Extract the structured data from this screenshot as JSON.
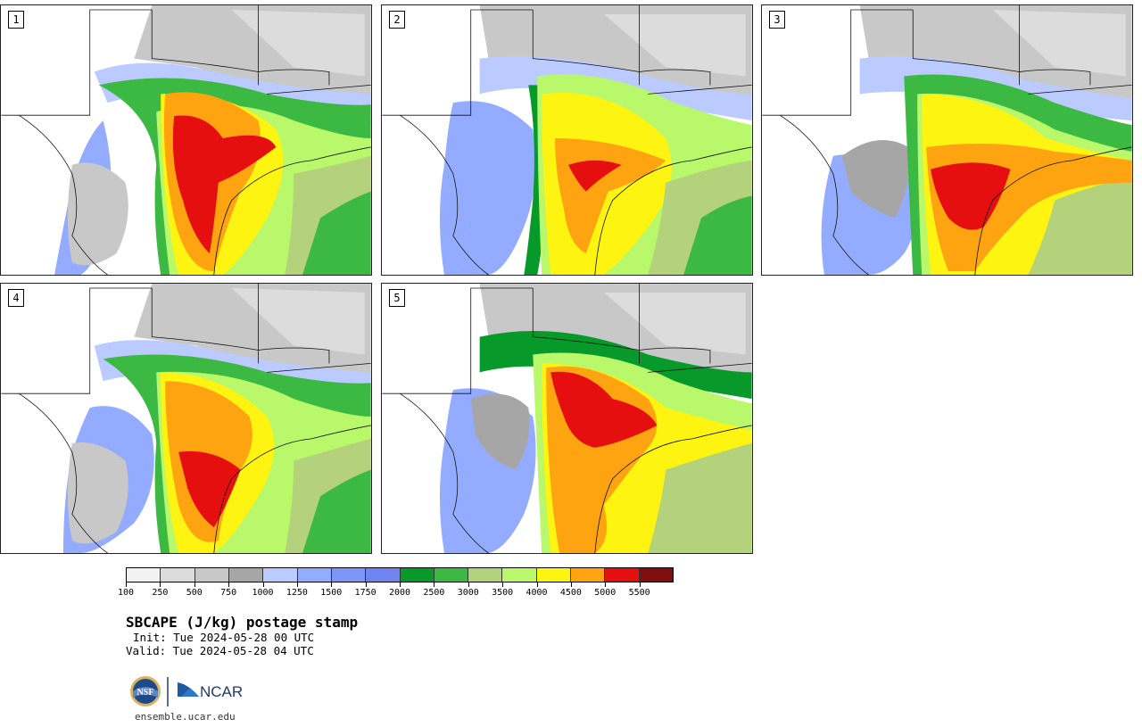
{
  "panels": [
    {
      "label": "1"
    },
    {
      "label": "2"
    },
    {
      "label": "3"
    },
    {
      "label": "4"
    },
    {
      "label": "5"
    }
  ],
  "colorbar": {
    "colors": [
      "#f2f2f2",
      "#dcdcdc",
      "#c8c8c8",
      "#a6a6a6",
      "#bccbff",
      "#93acff",
      "#7f96f8",
      "#6f84ef",
      "#079a2a",
      "#3cb943",
      "#b4d27c",
      "#b8f86a",
      "#fef412",
      "#ffa411",
      "#e50f0f",
      "#7f0e0e"
    ],
    "tick_labels": [
      "100",
      "250",
      "500",
      "750",
      "1000",
      "1250",
      "1500",
      "1750",
      "2000",
      "2500",
      "3000",
      "3500",
      "4000",
      "4500",
      "5000",
      "5500"
    ]
  },
  "title": "SBCAPE (J/kg) postage stamp",
  "init": "Init: Tue 2024-05-28 00 UTC",
  "valid": "Valid: Tue 2024-05-28 04 UTC",
  "logos": {
    "nsf": "NSF",
    "ncar": "NCAR"
  },
  "website": "ensemble.ucar.edu"
}
